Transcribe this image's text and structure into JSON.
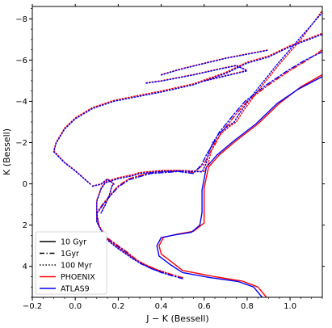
{
  "chart_data": {
    "type": "line",
    "title": "",
    "xlabel": "J − K (Bessell)",
    "ylabel": "K (Bessell)",
    "xlim": [
      -0.2,
      1.15
    ],
    "ylim": [
      5.5,
      -8.6
    ],
    "y_inverted": true,
    "grid": false,
    "legend_position": "lower-left",
    "x_ticks": [
      {
        "value": -0.2,
        "label": "−0.2"
      },
      {
        "value": 0.0,
        "label": "0.0"
      },
      {
        "value": 0.2,
        "label": "0.2"
      },
      {
        "value": 0.4,
        "label": "0.4"
      },
      {
        "value": 0.6,
        "label": "0.6"
      },
      {
        "value": 0.8,
        "label": "0.8"
      },
      {
        "value": 1.0,
        "label": "1.0"
      }
    ],
    "y_ticks": [
      {
        "value": -8,
        "label": "−8"
      },
      {
        "value": -6,
        "label": "−6"
      },
      {
        "value": -4,
        "label": "−4"
      },
      {
        "value": -2,
        "label": "−2"
      },
      {
        "value": 0,
        "label": "0"
      },
      {
        "value": 2,
        "label": "2"
      },
      {
        "value": 4,
        "label": "4"
      }
    ],
    "legend": [
      {
        "label": "10 Gyr",
        "color": "#000000",
        "dash": "solid"
      },
      {
        "label": "1Gyr",
        "color": "#000000",
        "dash": "dashdot"
      },
      {
        "label": "100 Myr",
        "color": "#000000",
        "dash": "dotted"
      },
      {
        "label": "PHOENIX",
        "color": "#ff0000",
        "dash": "solid"
      },
      {
        "label": "ATLAS9",
        "color": "#0000ff",
        "dash": "solid"
      }
    ],
    "colors": {
      "phoenix": "#ff0000",
      "atlas9": "#0000ff"
    },
    "series": [
      {
        "age": "10 Gyr",
        "dash": "solid",
        "phoenix": [
          [
            0.89,
            5.5
          ],
          [
            0.85,
            5.0
          ],
          [
            0.78,
            4.72
          ],
          [
            0.65,
            4.5
          ],
          [
            0.5,
            4.2
          ],
          [
            0.45,
            3.8
          ],
          [
            0.4,
            3.4
          ],
          [
            0.39,
            3.0
          ],
          [
            0.41,
            2.6
          ],
          [
            0.47,
            2.45
          ],
          [
            0.55,
            2.3
          ],
          [
            0.6,
            1.9
          ],
          [
            0.6,
            1.3
          ],
          [
            0.6,
            0.2
          ],
          [
            0.62,
            -0.8
          ],
          [
            0.67,
            -1.4
          ],
          [
            0.75,
            -2.1
          ],
          [
            0.85,
            -2.9
          ],
          [
            0.95,
            -3.9
          ],
          [
            1.05,
            -4.7
          ],
          [
            1.15,
            -5.3
          ]
        ],
        "atlas9": [
          [
            0.87,
            5.5
          ],
          [
            0.83,
            5.0
          ],
          [
            0.76,
            4.74
          ],
          [
            0.63,
            4.55
          ],
          [
            0.5,
            4.3
          ],
          [
            0.44,
            3.9
          ],
          [
            0.39,
            3.5
          ],
          [
            0.38,
            3.0
          ],
          [
            0.4,
            2.6
          ],
          [
            0.46,
            2.48
          ],
          [
            0.54,
            2.35
          ],
          [
            0.58,
            2.0
          ],
          [
            0.59,
            1.4
          ],
          [
            0.59,
            0.3
          ],
          [
            0.61,
            -0.8
          ],
          [
            0.66,
            -1.4
          ],
          [
            0.74,
            -2.1
          ],
          [
            0.84,
            -2.9
          ],
          [
            0.94,
            -3.9
          ],
          [
            1.04,
            -4.6
          ],
          [
            1.15,
            -5.2
          ]
        ]
      },
      {
        "age": "1Gyr",
        "dash": "dashdot",
        "phoenix": [
          [
            0.5,
            4.55
          ],
          [
            0.4,
            4.25
          ],
          [
            0.3,
            3.8
          ],
          [
            0.24,
            3.3
          ],
          [
            0.2,
            3.0
          ],
          [
            0.14,
            2.55
          ],
          [
            0.11,
            2.0
          ],
          [
            0.1,
            1.4
          ],
          [
            0.13,
            0.95
          ],
          [
            0.17,
            0.45
          ],
          [
            0.2,
            0.1
          ],
          [
            0.25,
            -0.25
          ],
          [
            0.35,
            -0.55
          ],
          [
            0.48,
            -0.65
          ],
          [
            0.55,
            -0.55
          ],
          [
            0.6,
            -0.95
          ],
          [
            0.62,
            -1.4
          ],
          [
            0.65,
            -1.9
          ],
          [
            0.68,
            -2.5
          ],
          [
            0.72,
            -3.0
          ],
          [
            0.75,
            -3.4
          ],
          [
            0.8,
            -4.0
          ],
          [
            0.9,
            -4.8
          ],
          [
            1.0,
            -5.5
          ],
          [
            1.08,
            -6.0
          ],
          [
            1.15,
            -6.5
          ]
        ],
        "atlas9": [
          [
            0.5,
            4.6
          ],
          [
            0.4,
            4.3
          ],
          [
            0.3,
            3.85
          ],
          [
            0.24,
            3.35
          ],
          [
            0.2,
            3.05
          ],
          [
            0.14,
            2.6
          ],
          [
            0.11,
            2.05
          ],
          [
            0.1,
            1.45
          ],
          [
            0.13,
            1.0
          ],
          [
            0.17,
            0.5
          ],
          [
            0.2,
            0.15
          ],
          [
            0.25,
            -0.2
          ],
          [
            0.35,
            -0.5
          ],
          [
            0.48,
            -0.6
          ],
          [
            0.55,
            -0.5
          ],
          [
            0.59,
            -0.95
          ],
          [
            0.61,
            -1.4
          ],
          [
            0.64,
            -1.9
          ],
          [
            0.67,
            -2.5
          ],
          [
            0.71,
            -3.0
          ],
          [
            0.74,
            -3.4
          ],
          [
            0.79,
            -4.0
          ],
          [
            0.89,
            -4.8
          ],
          [
            0.99,
            -5.5
          ],
          [
            1.07,
            -6.0
          ],
          [
            1.15,
            -6.4
          ]
        ]
      },
      {
        "age": "100 Myr",
        "dash": "dotted",
        "phoenix": [
          [
            0.45,
            4.4
          ],
          [
            0.35,
            4.05
          ],
          [
            0.27,
            3.6
          ],
          [
            0.2,
            3.1
          ],
          [
            0.14,
            2.6
          ],
          [
            0.1,
            1.8
          ],
          [
            0.1,
            0.8
          ],
          [
            0.12,
            0.2
          ],
          [
            0.14,
            -0.1
          ],
          [
            0.2,
            -0.3
          ],
          [
            0.27,
            -0.45
          ],
          [
            0.3,
            -0.55
          ],
          [
            0.4,
            -0.65
          ],
          [
            0.5,
            -0.65
          ],
          [
            0.6,
            -0.6
          ],
          [
            0.62,
            -1.0
          ],
          [
            0.63,
            -1.5
          ],
          [
            0.65,
            -2.0
          ],
          [
            0.68,
            -2.45
          ],
          [
            0.72,
            -2.8
          ],
          [
            0.75,
            -3.0
          ],
          [
            0.78,
            -3.5
          ],
          [
            0.85,
            -4.5
          ],
          [
            0.95,
            -5.8
          ],
          [
            1.05,
            -7.0
          ],
          [
            1.15,
            -8.4
          ]
        ],
        "atlas9": [
          [
            0.45,
            4.45
          ],
          [
            0.35,
            4.1
          ],
          [
            0.27,
            3.65
          ],
          [
            0.2,
            3.15
          ],
          [
            0.14,
            2.65
          ],
          [
            0.1,
            1.85
          ],
          [
            0.1,
            0.85
          ],
          [
            0.12,
            0.25
          ],
          [
            0.14,
            -0.05
          ],
          [
            0.2,
            -0.25
          ],
          [
            0.27,
            -0.4
          ],
          [
            0.3,
            -0.5
          ],
          [
            0.4,
            -0.6
          ],
          [
            0.5,
            -0.62
          ],
          [
            0.59,
            -0.58
          ],
          [
            0.61,
            -1.0
          ],
          [
            0.62,
            -1.5
          ],
          [
            0.64,
            -2.0
          ],
          [
            0.67,
            -2.45
          ],
          [
            0.71,
            -2.8
          ],
          [
            0.74,
            -3.0
          ],
          [
            0.77,
            -3.5
          ],
          [
            0.84,
            -4.5
          ],
          [
            0.94,
            -5.8
          ],
          [
            1.04,
            -7.0
          ],
          [
            1.15,
            -8.3
          ]
        ]
      },
      {
        "age": "100 Myr",
        "dash": "dotted",
        "phoenix": [
          [
            0.08,
            0.1
          ],
          [
            0.12,
            0.0
          ],
          [
            0.15,
            -0.25
          ],
          [
            0.18,
            0.0
          ],
          [
            0.17,
            0.1
          ],
          [
            0.16,
            0.5
          ],
          [
            0.14,
            1.0
          ],
          [
            0.12,
            1.4
          ]
        ],
        "atlas9": [
          [
            0.08,
            0.12
          ],
          [
            0.12,
            0.02
          ],
          [
            0.15,
            -0.22
          ],
          [
            0.18,
            0.02
          ],
          [
            0.17,
            0.12
          ],
          [
            0.16,
            0.52
          ],
          [
            0.14,
            1.02
          ],
          [
            0.12,
            1.42
          ]
        ]
      },
      {
        "age": "100 Myr",
        "dash": "dotted",
        "phoenix": [
          [
            0.07,
            0.0
          ],
          [
            0.0,
            -0.65
          ],
          [
            -0.05,
            -1.05
          ],
          [
            -0.1,
            -1.6
          ],
          [
            -0.09,
            -2.0
          ],
          [
            -0.05,
            -2.7
          ],
          [
            0.0,
            -3.2
          ],
          [
            0.08,
            -3.7
          ],
          [
            0.18,
            -4.05
          ],
          [
            0.3,
            -4.3
          ],
          [
            0.4,
            -4.5
          ],
          [
            0.55,
            -4.85
          ],
          [
            0.7,
            -5.4
          ],
          [
            0.8,
            -5.9
          ],
          [
            0.9,
            -6.2
          ],
          [
            1.0,
            -6.7
          ],
          [
            1.15,
            -7.3
          ]
        ],
        "atlas9": [
          [
            0.07,
            0.02
          ],
          [
            0.0,
            -0.62
          ],
          [
            -0.05,
            -1.02
          ],
          [
            -0.1,
            -1.55
          ],
          [
            -0.09,
            -1.95
          ],
          [
            -0.05,
            -2.65
          ],
          [
            0.0,
            -3.15
          ],
          [
            0.08,
            -3.65
          ],
          [
            0.18,
            -4.0
          ],
          [
            0.3,
            -4.25
          ],
          [
            0.4,
            -4.45
          ],
          [
            0.55,
            -4.8
          ],
          [
            0.7,
            -5.35
          ],
          [
            0.8,
            -5.85
          ],
          [
            0.9,
            -6.15
          ],
          [
            1.0,
            -6.65
          ],
          [
            1.15,
            -7.25
          ]
        ]
      },
      {
        "age": "100 Myr",
        "dash": "dotted",
        "phoenix": [
          [
            0.33,
            -4.9
          ],
          [
            0.4,
            -5.0
          ],
          [
            0.55,
            -5.3
          ],
          [
            0.68,
            -5.6
          ],
          [
            0.75,
            -5.75
          ],
          [
            0.8,
            -5.5
          ],
          [
            0.72,
            -5.3
          ],
          [
            0.6,
            -5.0
          ]
        ],
        "atlas9": [
          [
            0.33,
            -4.88
          ],
          [
            0.4,
            -4.98
          ],
          [
            0.55,
            -5.28
          ],
          [
            0.68,
            -5.58
          ],
          [
            0.75,
            -5.73
          ],
          [
            0.8,
            -5.48
          ],
          [
            0.72,
            -5.28
          ],
          [
            0.6,
            -4.98
          ]
        ]
      },
      {
        "age": "100 Myr",
        "dash": "dotted",
        "phoenix": [
          [
            0.4,
            -5.3
          ],
          [
            0.5,
            -5.6
          ],
          [
            0.6,
            -5.85
          ],
          [
            0.7,
            -6.1
          ],
          [
            0.8,
            -6.3
          ],
          [
            0.9,
            -6.5
          ]
        ],
        "atlas9": [
          [
            0.4,
            -5.28
          ],
          [
            0.5,
            -5.58
          ],
          [
            0.6,
            -5.83
          ],
          [
            0.7,
            -6.08
          ],
          [
            0.8,
            -6.28
          ],
          [
            0.9,
            -6.48
          ]
        ]
      }
    ]
  }
}
